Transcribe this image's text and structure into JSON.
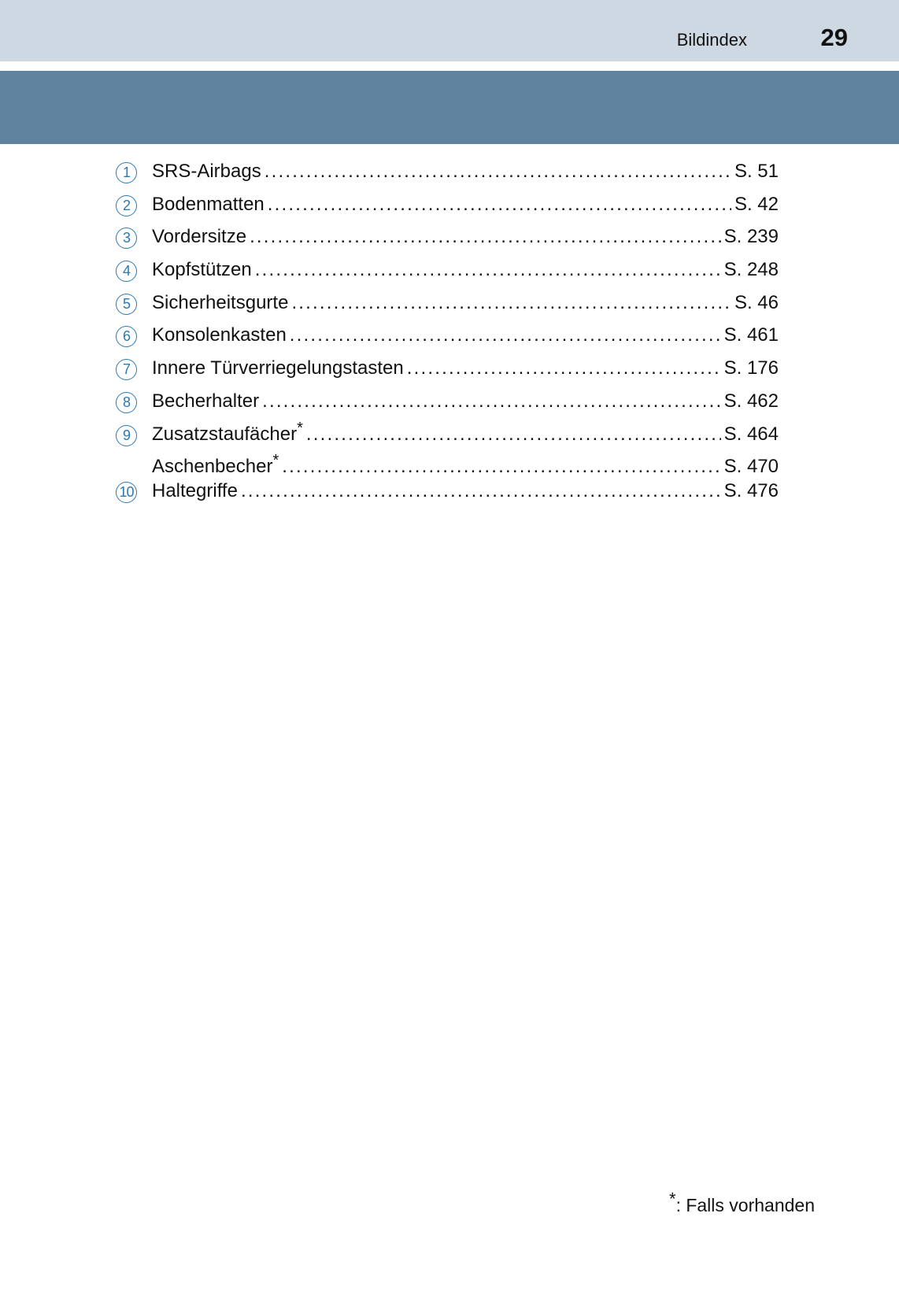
{
  "header": {
    "section": "Bildindex",
    "page_number": "29"
  },
  "entries": [
    {
      "num": "1",
      "label": "SRS-Airbags",
      "star": "",
      "page": "S. 51"
    },
    {
      "num": "2",
      "label": "Bodenmatten",
      "star": "",
      "page": "S. 42"
    },
    {
      "num": "3",
      "label": "Vordersitze",
      "star": "",
      "page": "S. 239"
    },
    {
      "num": "4",
      "label": "Kopfstützen",
      "star": "",
      "page": "S. 248"
    },
    {
      "num": "5",
      "label": "Sicherheitsgurte",
      "star": "",
      "page": "S. 46"
    },
    {
      "num": "6",
      "label": "Konsolenkasten",
      "star": "",
      "page": "S. 461"
    },
    {
      "num": "7",
      "label": "Innere Türverriegelungstasten",
      "star": "",
      "page": "S. 176"
    },
    {
      "num": "8",
      "label": "Becherhalter",
      "star": "",
      "page": "S. 462"
    },
    {
      "num": "9",
      "label": "Zusatzstaufächer",
      "star": "*",
      "page": "S. 464"
    },
    {
      "num": "",
      "label": "Aschenbecher",
      "star": "*",
      "page": "S. 470"
    },
    {
      "num": "10",
      "label": "Haltegriffe",
      "star": "",
      "page": "S. 476"
    }
  ],
  "footnote": {
    "star": "*",
    "text": ": Falls vorhanden"
  },
  "colors": {
    "top_band": "#cdd8e3",
    "dark_band": "#5f829e",
    "number_circle": "#2a7ab4"
  }
}
